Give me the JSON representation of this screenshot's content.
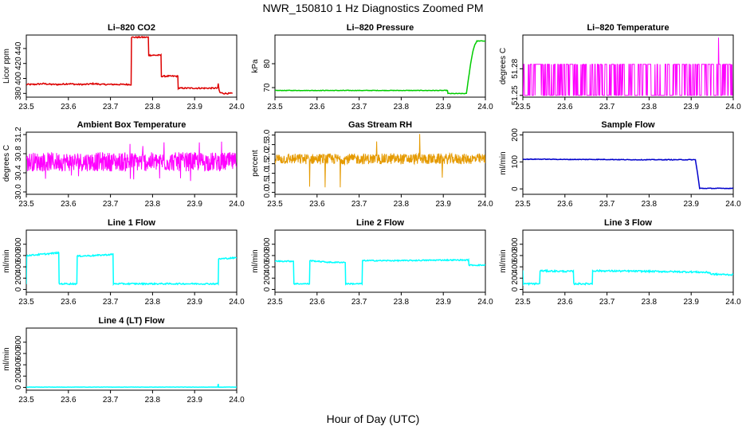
{
  "page": {
    "title": "NWR_150810  1 Hz Diagnostics Zoomed PM",
    "xlabel": "Hour of Day (UTC)"
  },
  "chart_data": [
    {
      "id": "co2",
      "type": "line",
      "title": "Li–820 CO2",
      "ylabel": "Licor ppm",
      "color": "#dd0000",
      "xlim": [
        23.5,
        24.0
      ],
      "ylim": [
        375,
        458
      ],
      "xticks": [
        23.5,
        23.6,
        23.7,
        23.8,
        23.9,
        24.0
      ],
      "yticks": [
        380,
        400,
        420,
        440
      ],
      "x": [
        23.5,
        23.52,
        23.54,
        23.56,
        23.58,
        23.6,
        23.62,
        23.64,
        23.66,
        23.68,
        23.7,
        23.72,
        23.749,
        23.75,
        23.77,
        23.79,
        23.791,
        23.81,
        23.82,
        23.821,
        23.84,
        23.86,
        23.861,
        23.88,
        23.9,
        23.915,
        23.93,
        23.95,
        23.955,
        23.956,
        23.958,
        23.96,
        23.97,
        23.99
      ],
      "y": [
        392,
        392,
        393,
        392,
        392,
        393,
        392,
        392,
        393,
        392,
        392,
        392,
        392,
        455,
        455,
        455,
        431,
        431,
        431,
        403,
        403,
        403,
        387,
        387,
        387,
        387,
        387,
        387,
        387,
        393,
        385,
        381,
        380,
        380
      ],
      "noise": 0.9
    },
    {
      "id": "pressure",
      "type": "line",
      "title": "Li–820 Pressure",
      "ylabel": "kPa",
      "color": "#00cc00",
      "xlim": [
        23.5,
        24.0
      ],
      "ylim": [
        66,
        92
      ],
      "xticks": [
        23.5,
        23.6,
        23.7,
        23.8,
        23.9,
        24.0
      ],
      "yticks": [
        70,
        80
      ],
      "x": [
        23.5,
        23.6,
        23.7,
        23.8,
        23.91,
        23.911,
        23.955,
        23.96,
        23.965,
        23.97,
        23.975,
        23.98,
        24.0
      ],
      "y": [
        68.8,
        68.8,
        68.8,
        68.8,
        68.8,
        67.5,
        67.5,
        74,
        80,
        85,
        88,
        89.5,
        89.5
      ],
      "noise": 0.1
    },
    {
      "id": "licor-temp",
      "type": "spiky",
      "title": "Li–820 Temperature",
      "ylabel": "degrees C",
      "color": "#ff00ff",
      "xlim": [
        23.5,
        24.0
      ],
      "ylim": [
        51.248,
        51.318
      ],
      "xticks": [
        23.5,
        23.6,
        23.7,
        23.8,
        23.9,
        24.0
      ],
      "yticks": [
        51.25,
        51.28
      ],
      "base": 51.25,
      "high": 51.285,
      "peak_x": 23.965,
      "peak_y": 51.315,
      "density": 0.35
    },
    {
      "id": "box-temp",
      "type": "noise",
      "title": "Ambient Box Temperature",
      "ylabel": "degrees C",
      "color": "#ff00ff",
      "xlim": [
        23.5,
        24.0
      ],
      "ylim": [
        29.95,
        31.25
      ],
      "xticks": [
        23.5,
        23.6,
        23.7,
        23.8,
        23.9,
        24.0
      ],
      "yticks": [
        30.0,
        30.4,
        30.8,
        31.2
      ],
      "mean": 30.63,
      "spread": 0.2,
      "outlier": 0.45
    },
    {
      "id": "rh",
      "type": "noise",
      "title": "Gas Stream RH",
      "ylabel": "percent",
      "color": "#e59a00",
      "xlim": [
        23.5,
        24.0
      ],
      "ylim": [
        -0.1,
        3.15
      ],
      "xticks": [
        23.5,
        23.6,
        23.7,
        23.8,
        23.9,
        24.0
      ],
      "yticks": [
        0.0,
        0.5,
        1.0,
        1.5,
        2.0,
        2.5,
        3.0
      ],
      "mean": 1.75,
      "spread": 0.28,
      "outlier": 1.5
    },
    {
      "id": "sample-flow",
      "type": "line",
      "title": "Sample Flow",
      "ylabel": "ml/min",
      "color": "#0000cc",
      "xlim": [
        23.5,
        24.0
      ],
      "ylim": [
        -20,
        210
      ],
      "xticks": [
        23.5,
        23.6,
        23.7,
        23.8,
        23.9,
        24.0
      ],
      "yticks": [
        0,
        100,
        200
      ],
      "x": [
        23.5,
        23.55,
        23.6,
        23.65,
        23.7,
        23.75,
        23.8,
        23.85,
        23.9,
        23.91,
        23.915,
        23.92,
        24.0
      ],
      "y": [
        110,
        110,
        109,
        109,
        109,
        108,
        108,
        108,
        108,
        108,
        60,
        2,
        2
      ],
      "noise": 1.2
    },
    {
      "id": "line1",
      "type": "line",
      "title": "Line 1 Flow",
      "ylabel": "ml/min",
      "color": "#00ffff",
      "xlim": [
        23.5,
        24.0
      ],
      "ylim": [
        -50,
        1050
      ],
      "xticks": [
        23.5,
        23.6,
        23.7,
        23.8,
        23.9,
        24.0
      ],
      "yticks": [
        0,
        200,
        400,
        600,
        800
      ],
      "x": [
        23.5,
        23.501,
        23.55,
        23.577,
        23.578,
        23.62,
        23.621,
        23.66,
        23.706,
        23.707,
        23.8,
        23.9,
        23.956,
        23.957,
        24.0
      ],
      "y": [
        100,
        600,
        630,
        650,
        100,
        100,
        590,
        600,
        620,
        100,
        100,
        100,
        100,
        540,
        560
      ],
      "noise": 12
    },
    {
      "id": "line2",
      "type": "line",
      "title": "Line 2 Flow",
      "ylabel": "ml/min",
      "color": "#00ffff",
      "xlim": [
        23.5,
        24.0
      ],
      "ylim": [
        -50,
        1050
      ],
      "xticks": [
        23.5,
        23.6,
        23.7,
        23.8,
        23.9,
        24.0
      ],
      "yticks": [
        0,
        200,
        400,
        600,
        800
      ],
      "x": [
        23.5,
        23.544,
        23.545,
        23.582,
        23.583,
        23.63,
        23.667,
        23.668,
        23.707,
        23.708,
        23.8,
        23.9,
        23.96,
        23.961,
        24.0
      ],
      "y": [
        500,
        500,
        100,
        100,
        510,
        480,
        480,
        100,
        100,
        510,
        510,
        520,
        520,
        430,
        430
      ],
      "noise": 10
    },
    {
      "id": "line3",
      "type": "line",
      "title": "Line 3 Flow",
      "ylabel": "ml/min",
      "color": "#00ffff",
      "xlim": [
        23.5,
        24.0
      ],
      "ylim": [
        -50,
        1050
      ],
      "xticks": [
        23.5,
        23.6,
        23.7,
        23.8,
        23.9,
        24.0
      ],
      "yticks": [
        0,
        200,
        400,
        600,
        800
      ],
      "x": [
        23.5,
        23.501,
        23.505,
        23.54,
        23.541,
        23.6,
        23.62,
        23.621,
        23.665,
        23.666,
        23.8,
        23.9,
        23.945,
        23.946,
        24.0
      ],
      "y": [
        350,
        100,
        100,
        100,
        330,
        320,
        320,
        100,
        100,
        330,
        320,
        310,
        300,
        270,
        260
      ],
      "noise": 14
    },
    {
      "id": "line4",
      "type": "line",
      "title": "Line 4 (LT) Flow",
      "ylabel": "ml/min",
      "color": "#00ffff",
      "xlim": [
        23.5,
        24.0
      ],
      "ylim": [
        -50,
        1050
      ],
      "xticks": [
        23.5,
        23.6,
        23.7,
        23.8,
        23.9,
        24.0
      ],
      "yticks": [
        0,
        200,
        400,
        600,
        800
      ],
      "x": [
        23.5,
        23.7,
        23.955,
        23.956,
        23.957,
        23.958,
        24.0
      ],
      "y": [
        5,
        5,
        5,
        60,
        5,
        5,
        5
      ],
      "noise": 2
    }
  ]
}
